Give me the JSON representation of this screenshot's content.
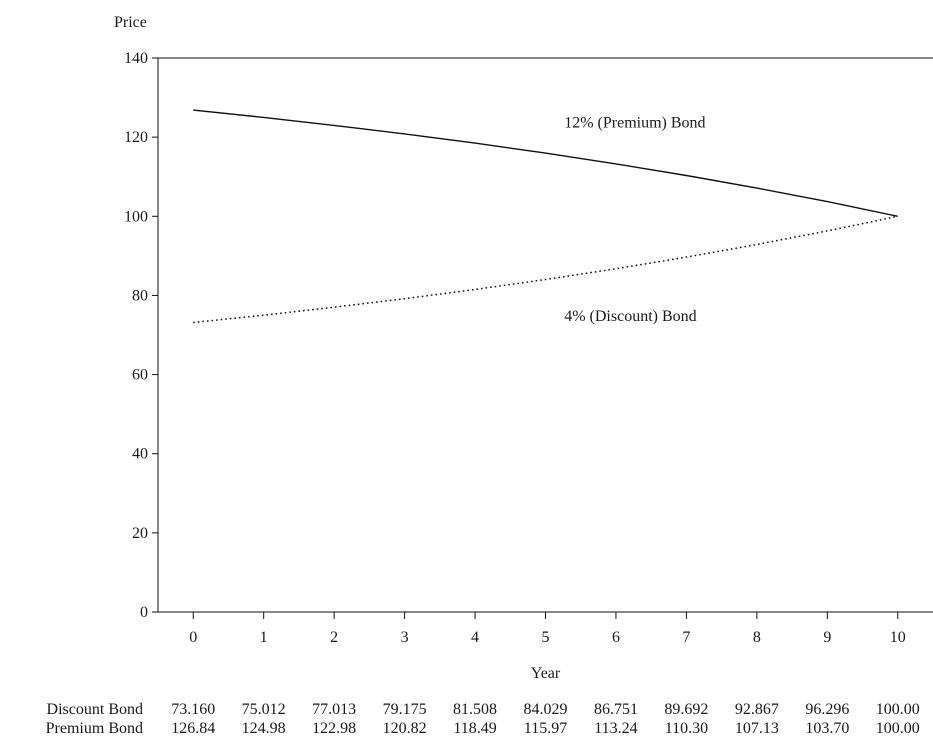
{
  "chart_data": {
    "type": "line",
    "ylabel": "Price",
    "xlabel": "Year",
    "x": [
      0,
      1,
      2,
      3,
      4,
      5,
      6,
      7,
      8,
      9,
      10
    ],
    "xlim": [
      -0.5,
      10.5
    ],
    "ylim": [
      0,
      140
    ],
    "yticks": [
      0,
      20,
      40,
      60,
      80,
      100,
      120,
      140
    ],
    "grid": false,
    "series": [
      {
        "name": "12% (Premium) Bond",
        "style": "solid",
        "color": "#111111",
        "values": [
          126.84,
          124.98,
          122.98,
          120.82,
          118.49,
          115.97,
          113.24,
          110.3,
          107.13,
          103.7,
          100.0
        ]
      },
      {
        "name": "4% (Discount) Bond",
        "style": "dotted",
        "color": "#111111",
        "values": [
          73.16,
          75.012,
          77.013,
          79.175,
          81.508,
          84.029,
          86.751,
          89.692,
          92.867,
          96.296,
          100.0
        ]
      }
    ],
    "annotations": [
      {
        "text": "12% (Premium) Bond",
        "x": 6.6,
        "y": 122.5
      },
      {
        "text": "4% (Discount) Bond",
        "x": 6.6,
        "y": 73.5
      }
    ],
    "table": {
      "rows": [
        {
          "label": "Discount Bond",
          "values": [
            "73.160",
            "75.012",
            "77.013",
            "79.175",
            "81.508",
            "84.029",
            "86.751",
            "89.692",
            "92.867",
            "96.296",
            "100.00"
          ]
        },
        {
          "label": "Premium Bond",
          "values": [
            "126.84",
            "124.98",
            "122.98",
            "120.82",
            "118.49",
            "115.97",
            "113.24",
            "110.30",
            "107.13",
            "103.70",
            "100.00"
          ]
        }
      ]
    }
  }
}
